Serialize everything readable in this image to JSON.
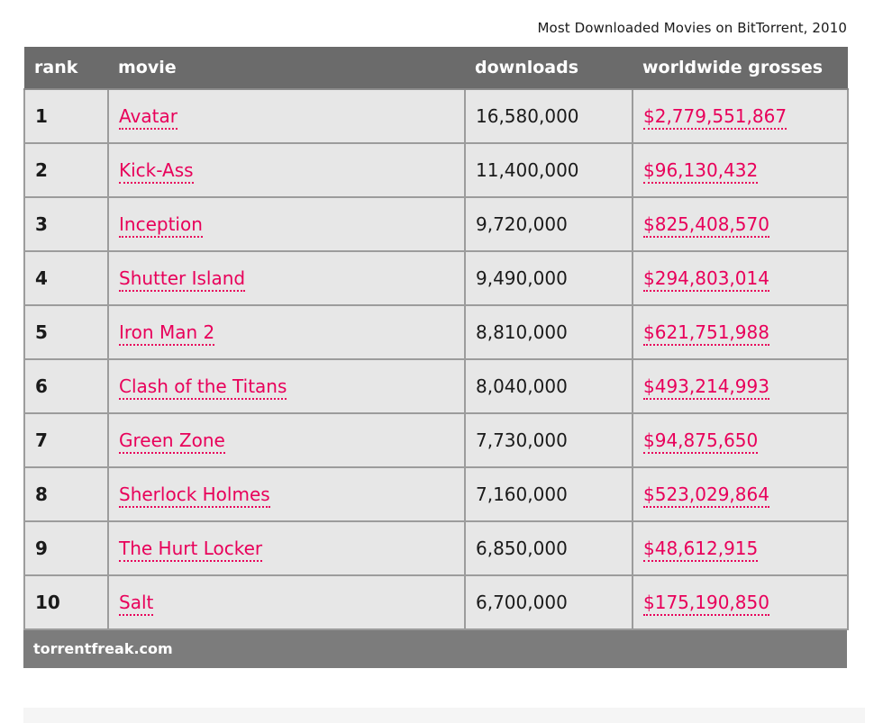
{
  "caption": "Most Downloaded Movies on BitTorrent, 2010",
  "headers": {
    "rank": "rank",
    "movie": "movie",
    "downloads": "downloads",
    "grosses": "worldwide grosses"
  },
  "rows": [
    {
      "rank": "1",
      "movie": "Avatar",
      "downloads": "16,580,000",
      "grosses": "$2,779,551,867"
    },
    {
      "rank": "2",
      "movie": "Kick-Ass",
      "downloads": "11,400,000",
      "grosses": "$96,130,432"
    },
    {
      "rank": "3",
      "movie": "Inception",
      "downloads": "9,720,000",
      "grosses": "$825,408,570"
    },
    {
      "rank": "4",
      "movie": "Shutter Island",
      "downloads": "9,490,000",
      "grosses": "$294,803,014"
    },
    {
      "rank": "5",
      "movie": "Iron Man 2",
      "downloads": "8,810,000",
      "grosses": "$621,751,988"
    },
    {
      "rank": "6",
      "movie": "Clash of the Titans",
      "downloads": "8,040,000",
      "grosses": "$493,214,993"
    },
    {
      "rank": "7",
      "movie": "Green Zone",
      "downloads": "7,730,000",
      "grosses": "$94,875,650"
    },
    {
      "rank": "8",
      "movie": "Sherlock Holmes",
      "downloads": "7,160,000",
      "grosses": "$523,029,864"
    },
    {
      "rank": "9",
      "movie": "The Hurt Locker",
      "downloads": "6,850,000",
      "grosses": "$48,612,915"
    },
    {
      "rank": "10",
      "movie": "Salt",
      "downloads": "6,700,000",
      "grosses": "$175,190,850"
    }
  ],
  "footer": "torrentfreak.com",
  "colors": {
    "link": "#e8005a",
    "header_bg": "#6b6b6b",
    "row_bg": "#e7e7e7",
    "footer_bg": "#7c7c7c"
  }
}
